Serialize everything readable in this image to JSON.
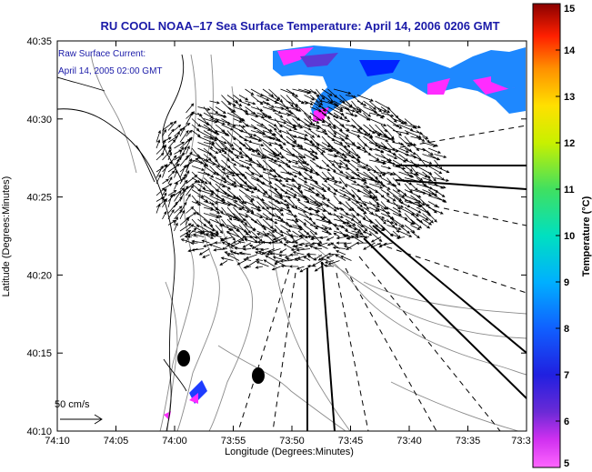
{
  "title": "RU COOL  NOAA–17  Sea Surface Temperature:  April 14, 2006 0206 GMT",
  "annotation": {
    "line1": "Raw Surface Current:",
    "line2": "April 14, 2005 02:00 GMT"
  },
  "scale_label": "50 cm/s",
  "axes": {
    "xlabel": "Longitude (Degrees:Minutes)",
    "ylabel": "Latitude (Degrees:Minutes)",
    "x_ticks": [
      "74:10",
      "74:05",
      "74:00",
      "73:55",
      "73:50",
      "73:45",
      "73:40",
      "73:35",
      "73:3"
    ],
    "y_ticks": [
      "40:35",
      "40:30",
      "40:25",
      "40:20",
      "40:15",
      "40:10"
    ]
  },
  "colorbar": {
    "label": "Temperature (°C)",
    "ticks": [
      "15",
      "14",
      "13",
      "12",
      "11",
      "10",
      "9",
      "8",
      "7",
      "6",
      "5"
    ],
    "min": 5,
    "max": 15
  },
  "colors": {
    "title": "#1a1aa8",
    "coast": "#000000",
    "bathymetry": "#8a8a8a",
    "sst_cold": "#ff30ff",
    "sst_mid": "#2050ff",
    "sst_warm": "#ff0000"
  }
}
